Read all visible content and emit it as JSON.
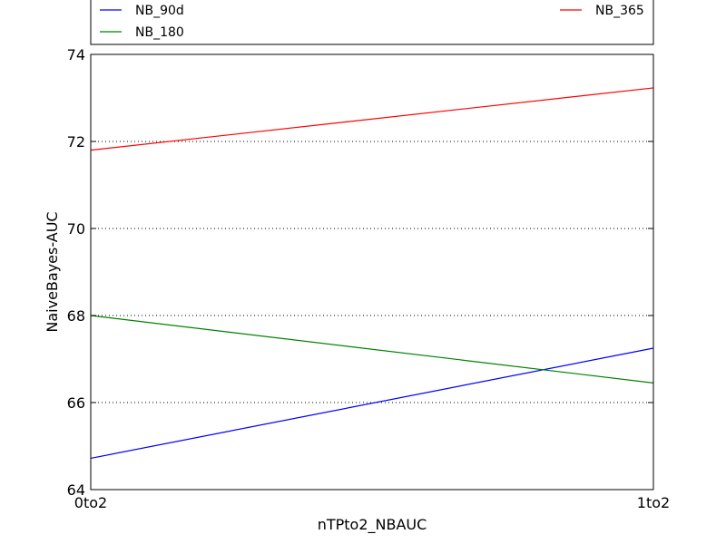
{
  "chart_data": {
    "type": "line",
    "categories": [
      "0to2",
      "1to2"
    ],
    "series": [
      {
        "name": "NB_90d",
        "values": [
          64.72,
          67.25
        ],
        "color": "#0000ff"
      },
      {
        "name": "NB_180",
        "values": [
          68.0,
          66.45
        ],
        "color": "#008000"
      },
      {
        "name": "NB_365",
        "values": [
          71.8,
          73.23
        ],
        "color": "#ff0000"
      }
    ],
    "xlabel": "nTPto2_NBAUC",
    "ylabel": "NaiveBayes-AUC",
    "ylim": [
      64,
      74
    ],
    "yticks": [
      64,
      66,
      68,
      70,
      72,
      74
    ],
    "grid": "horizontal-dotted",
    "legend_position": "top"
  }
}
